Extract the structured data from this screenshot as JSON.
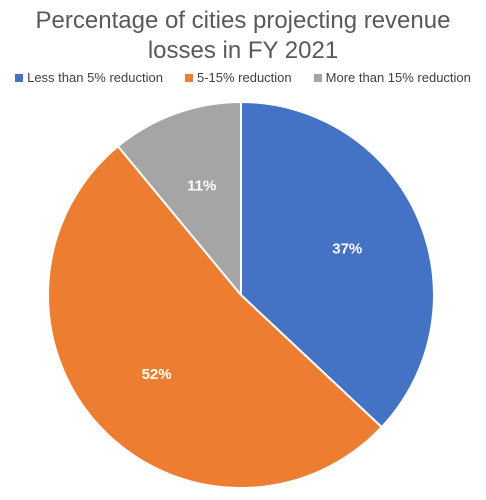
{
  "chart_data": {
    "type": "pie",
    "title_lines": [
      "Percentage of cities projecting revenue",
      "losses in FY 2021"
    ],
    "legend_position": "top",
    "categories": [
      "Less than 5% reduction",
      "5-15% reduction",
      "More than 15% reduction"
    ],
    "values": [
      37,
      52,
      11
    ],
    "data_labels": [
      "37%",
      "52%",
      "11%"
    ],
    "colors": [
      "#4472C4",
      "#ED7D31",
      "#A5A5A5"
    ],
    "start_angle_deg": 0,
    "direction": "clockwise"
  }
}
